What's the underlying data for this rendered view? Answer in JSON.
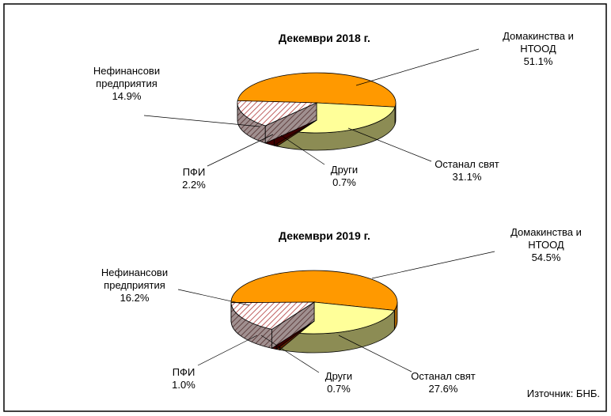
{
  "chart_data": [
    {
      "type": "pie",
      "title": "Декември 2018 г.",
      "categories": [
        "Домакинства и НТООД",
        "Останал свят",
        "Други",
        "ПФИ",
        "Нефинансови предприятия"
      ],
      "values": [
        51.1,
        31.1,
        0.7,
        2.2,
        14.9
      ],
      "value_labels": [
        "51.1%",
        "31.1%",
        "0.7%",
        "2.2%",
        "14.9%"
      ],
      "colors": [
        "#ff9900",
        "#ffff99",
        "#993300",
        "#660000",
        "#cc9999"
      ]
    },
    {
      "type": "pie",
      "title": "Декември 2019 г.",
      "categories": [
        "Домакинства и НТООД",
        "Останал свят",
        "Други",
        "ПФИ",
        "Нефинансови предприятия"
      ],
      "values": [
        54.5,
        27.6,
        0.7,
        1.0,
        16.2
      ],
      "value_labels": [
        "54.5%",
        "27.6%",
        "0.7%",
        "1.0%",
        "16.2%"
      ],
      "colors": [
        "#ff9900",
        "#ffff99",
        "#993300",
        "#660000",
        "#cc9999"
      ]
    }
  ],
  "source": "Източник: БНБ."
}
